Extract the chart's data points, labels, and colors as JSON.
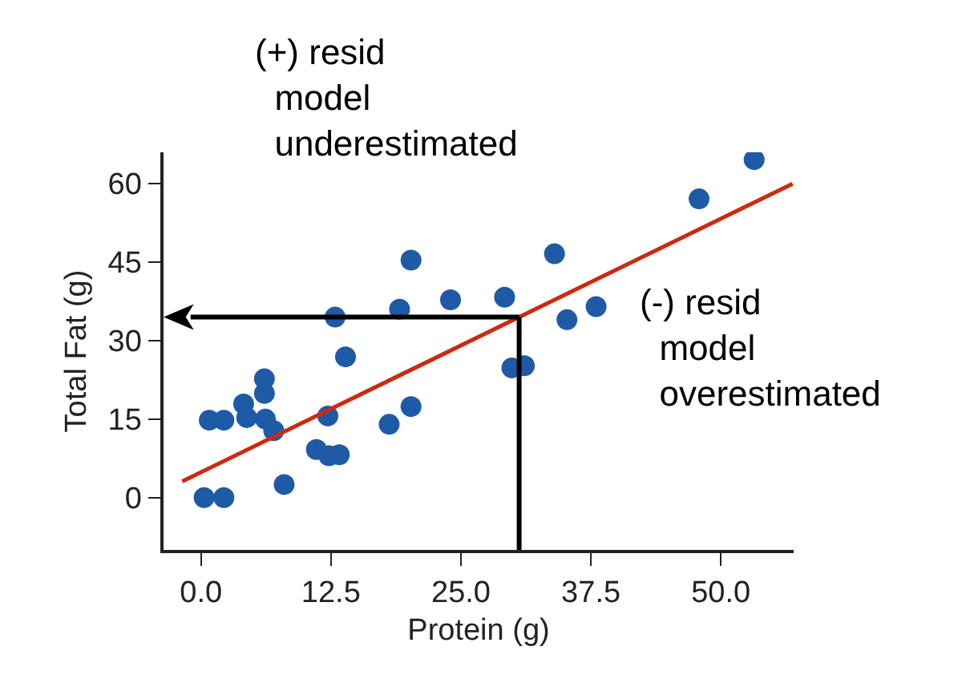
{
  "chart_data": {
    "type": "scatter",
    "xlabel": "Protein (g)",
    "ylabel": "Total Fat (g)",
    "xlim": [
      -3.6,
      57
    ],
    "ylim": [
      -10,
      66
    ],
    "xticks": [
      {
        "value": 0,
        "label": "0.0"
      },
      {
        "value": 12.5,
        "label": "12.5"
      },
      {
        "value": 25,
        "label": "25.0"
      },
      {
        "value": 37.5,
        "label": "37.5"
      },
      {
        "value": 50,
        "label": "50.0"
      }
    ],
    "yticks": [
      0,
      15,
      30,
      45,
      60
    ],
    "grid": false,
    "series": [
      {
        "marker": "circle",
        "color": "#1f5aa6",
        "x": [
          0.3,
          2.2,
          0.8,
          2.2,
          4.1,
          4.4,
          6.1,
          6.1,
          6.2,
          7.0,
          8.0,
          11.1,
          12.3,
          13.3,
          12.2,
          12.9,
          13.9,
          18.1,
          20.2,
          19.1,
          20.2,
          24.0,
          29.2,
          29.9,
          31.1,
          34.0,
          35.2,
          38.0,
          47.9,
          53.2
        ],
        "values": [
          0,
          0,
          14.8,
          14.8,
          17.9,
          15.3,
          22.7,
          19.9,
          15,
          12.8,
          2.5,
          9.2,
          8.0,
          8.2,
          15.6,
          34.5,
          26.9,
          14.0,
          17.4,
          36.0,
          45.4,
          37.8,
          38.3,
          24.8,
          25.2,
          46.6,
          34.0,
          36.5,
          57.1,
          64.6
        ]
      },
      {
        "type": "line",
        "color": "#cc2a10",
        "x": [
          -1.8,
          56.9
        ],
        "values": [
          3.1,
          60
        ]
      }
    ],
    "ref_lines": [
      {
        "axis": "x",
        "value": 30.6,
        "color": "#000000"
      },
      {
        "axis": "y",
        "value": 34.5,
        "color": "#000000"
      }
    ],
    "annotations": [
      "(+) resid\nmodel\nunderestimated",
      "(-) resid\nmodel\noverestimated"
    ]
  }
}
